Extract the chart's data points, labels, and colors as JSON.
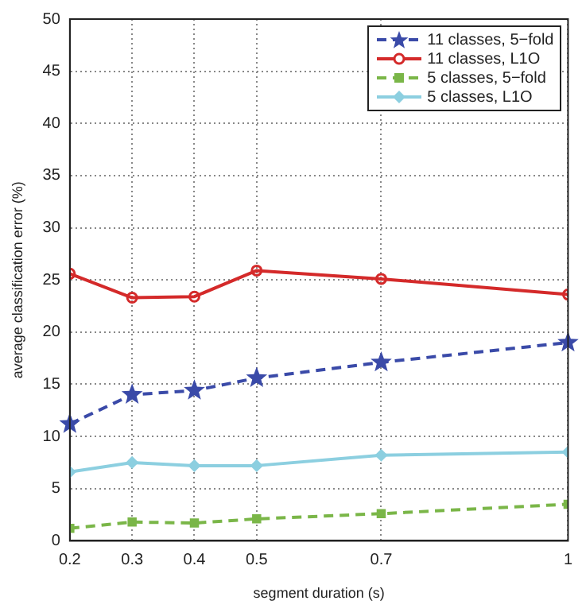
{
  "chart_data": {
    "type": "line",
    "xlabel": "segment duration (s)",
    "ylabel": "average classification error (%)",
    "x": [
      0.2,
      0.3,
      0.4,
      0.5,
      0.7,
      1
    ],
    "xlim": [
      0.2,
      1
    ],
    "xticks": [
      0.2,
      0.3,
      0.4,
      0.5,
      0.7,
      1
    ],
    "ylim": [
      0,
      50
    ],
    "yticks": [
      0,
      5,
      10,
      15,
      20,
      25,
      30,
      35,
      40,
      45,
      50
    ],
    "grid": true,
    "legend": "top right",
    "series": [
      {
        "name": "11 classes, 5−fold",
        "color": "#3a4aa8",
        "marker": "star",
        "line_style": "dashed",
        "values": [
          11.2,
          14.0,
          14.4,
          15.6,
          17.1,
          19.0
        ]
      },
      {
        "name": "11 classes, L1O",
        "color": "#d42a2a",
        "marker": "circle",
        "line_style": "solid",
        "values": [
          25.6,
          23.3,
          23.4,
          25.9,
          25.1,
          23.6
        ]
      },
      {
        "name": "5 classes, 5−fold",
        "color": "#7ab648",
        "marker": "square",
        "line_style": "dashed",
        "values": [
          1.2,
          1.8,
          1.7,
          2.1,
          2.6,
          3.5
        ]
      },
      {
        "name": "5 classes, L1O",
        "color": "#8ccfe0",
        "marker": "diamond",
        "line_style": "solid",
        "values": [
          6.6,
          7.5,
          7.2,
          7.2,
          8.2,
          8.5
        ]
      }
    ]
  }
}
